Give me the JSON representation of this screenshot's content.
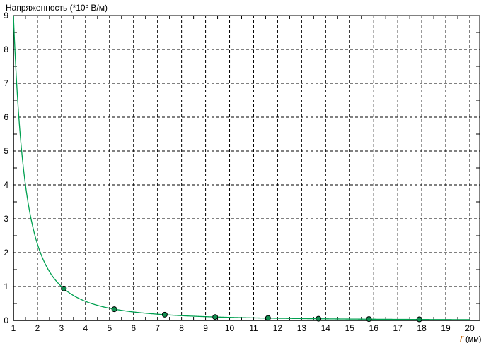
{
  "chart_data": {
    "type": "line",
    "title": "",
    "ylabel": "Напряженность (*10",
    "ylabel_sup": "6",
    "ylabel_unit": " В/м)",
    "xlabel_symbol": "r",
    "xlabel_unit": "(мм)",
    "xlim": [
      1,
      20
    ],
    "ylim": [
      0,
      9
    ],
    "xticks": [
      1,
      2,
      3,
      4,
      5,
      6,
      7,
      8,
      9,
      10,
      11,
      12,
      13,
      14,
      15,
      16,
      17,
      18,
      19,
      20
    ],
    "yticks": [
      0,
      1,
      2,
      3,
      4,
      5,
      6,
      7,
      8,
      9
    ],
    "grid": true,
    "curve": {
      "formula_coefficient": 9.0,
      "description_type": "inverse-square"
    },
    "points": {
      "x": [
        3.1,
        5.2,
        7.3,
        9.4,
        11.6,
        13.7,
        15.8,
        17.9
      ],
      "y": [
        0.94,
        0.33,
        0.17,
        0.1,
        0.07,
        0.05,
        0.04,
        0.03
      ]
    },
    "colors": {
      "curve": "#00a050",
      "points": "#109050",
      "grid": "#000000"
    }
  }
}
